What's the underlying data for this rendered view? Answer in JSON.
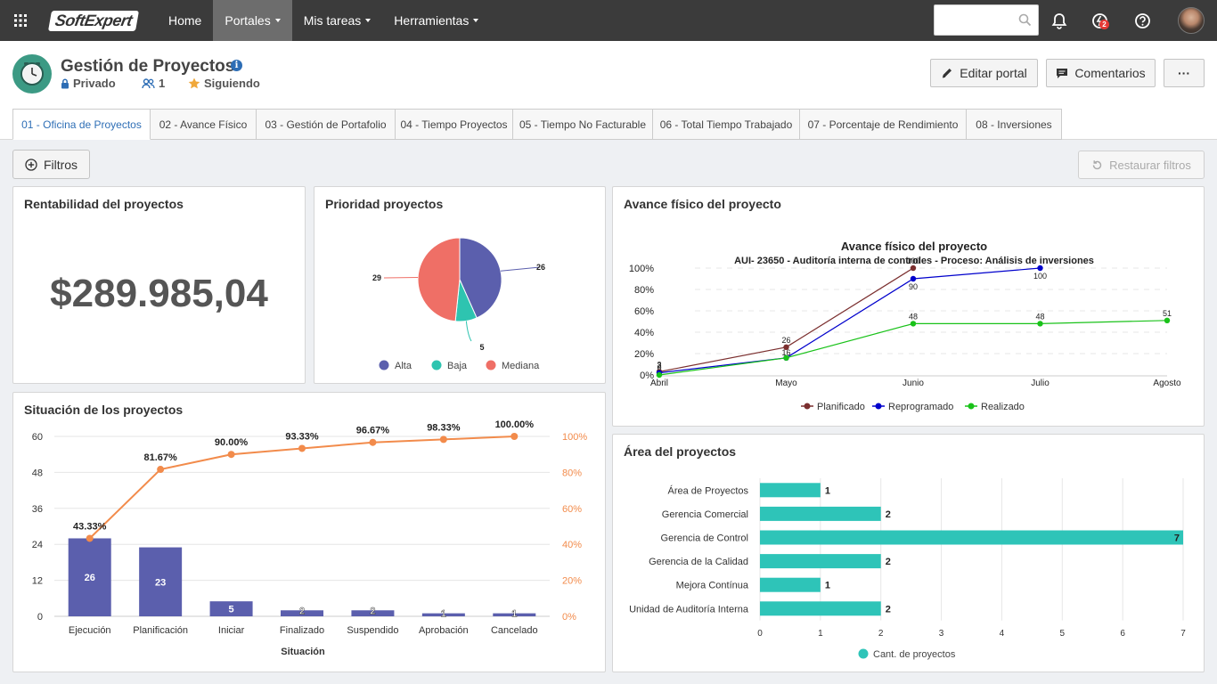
{
  "topnav": {
    "logo": "SoftExpert",
    "items": [
      {
        "label": "Home",
        "has_caret": false,
        "active": false
      },
      {
        "label": "Portales",
        "has_caret": true,
        "active": true
      },
      {
        "label": "Mis tareas",
        "has_caret": true,
        "active": false
      },
      {
        "label": "Herramientas",
        "has_caret": true,
        "active": false
      }
    ],
    "search_placeholder": "",
    "notifications_badge": "2"
  },
  "portal": {
    "title": "Gestión de Proyectos",
    "privacy": "Privado",
    "members": "1",
    "following": "Siguiendo",
    "edit_label": "Editar portal",
    "comments_label": "Comentarios",
    "more_label": "···"
  },
  "tabs": [
    "01 - Oficina de Proyectos",
    "02 - Avance Físico",
    "03 - Gestión de Portafolio",
    "04 - Tiempo Proyectos",
    "05 - Tiempo No Facturable",
    "06 - Total Tiempo Trabajado",
    "07 - Porcentaje de Rendimiento",
    "08 - Inversiones"
  ],
  "toolbar": {
    "filters_label": "Filtros",
    "restore_label": "Restaurar filtros"
  },
  "rentabilidad": {
    "title": "Rentabilidad del proyectos",
    "value": "$289.985,04"
  },
  "colors": {
    "accent": "#2f6fb6",
    "alta": "#5b5fad",
    "baja": "#2ec4b0",
    "mediana": "#ef6f66",
    "bar": "#5b5fad",
    "line": "#f28b4b",
    "teal": "#2ec4b8",
    "planificado": "#7b2f2f",
    "reprogramado": "#0000cc",
    "realizado": "#19c219"
  },
  "chart_data": [
    {
      "type": "pie",
      "title": "Prioridad proyectos",
      "categories": [
        "Alta",
        "Baja",
        "Mediana"
      ],
      "values": [
        26,
        5,
        29
      ],
      "legend": "bottom"
    },
    {
      "type": "line",
      "title": "Avance físico del proyecto",
      "chart_title": "Avance físico del proyecto",
      "subtitle": "AUI- 23650 - Auditoría interna de controles - Proceso: Análisis de inversiones",
      "categories": [
        "Abril",
        "Mayo",
        "Junio",
        "Julio",
        "Agosto"
      ],
      "yticks": [
        "0%",
        "20%",
        "40%",
        "60%",
        "80%",
        "100%"
      ],
      "ylim": [
        0,
        100
      ],
      "series": [
        {
          "name": "Planificado",
          "values": [
            3,
            26,
            100,
            null,
            null
          ],
          "labels": [
            "3",
            "26",
            "100",
            "",
            ""
          ]
        },
        {
          "name": "Reprogramado",
          "values": [
            2,
            16,
            90,
            100,
            null
          ],
          "labels": [
            "2",
            "16",
            "90",
            "100",
            ""
          ]
        },
        {
          "name": "Realizado",
          "values": [
            0,
            16,
            48,
            48,
            51
          ],
          "labels": [
            "0",
            "",
            "48",
            "48",
            "51"
          ]
        }
      ],
      "legend": "bottom"
    },
    {
      "type": "bar",
      "title": "Situación de los proyectos",
      "xlabel": "Situación",
      "categories": [
        "Ejecución",
        "Planificación",
        "Iniciar",
        "Finalizado",
        "Suspendido",
        "Aprobación",
        "Cancelado"
      ],
      "values": [
        26,
        23,
        5,
        2,
        2,
        1,
        1
      ],
      "value_labels": [
        "26",
        "23",
        "5",
        "2",
        "2",
        "1",
        "1"
      ],
      "ylim": [
        0,
        60
      ],
      "yticks": [
        "0",
        "12",
        "24",
        "36",
        "48",
        "60"
      ],
      "cumulative_pct": [
        43.33,
        81.67,
        90.0,
        93.33,
        96.67,
        98.33,
        100.0
      ],
      "cumulative_labels": [
        "43.33%",
        "81.67%",
        "90.00%",
        "93.33%",
        "96.67%",
        "98.33%",
        "100.00%"
      ],
      "y2ticks": [
        "0%",
        "20%",
        "40%",
        "60%",
        "80%",
        "100%"
      ],
      "y2lim": [
        0,
        100
      ]
    },
    {
      "type": "bar",
      "orientation": "horizontal",
      "title": "Área del proyectos",
      "categories": [
        "Área de Proyectos",
        "Gerencia Comercial",
        "Gerencia de Control",
        "Gerencia de la Calidad",
        "Mejora Contínua",
        "Unidad de Auditoría Interna"
      ],
      "values": [
        1,
        2,
        7,
        2,
        1,
        2
      ],
      "value_labels": [
        "1",
        "2",
        "7",
        "2",
        "1",
        "2"
      ],
      "xlim": [
        0,
        7
      ],
      "xticks": [
        "0",
        "1",
        "2",
        "3",
        "4",
        "5",
        "6",
        "7"
      ],
      "legend": "Cant. de proyectos"
    }
  ]
}
